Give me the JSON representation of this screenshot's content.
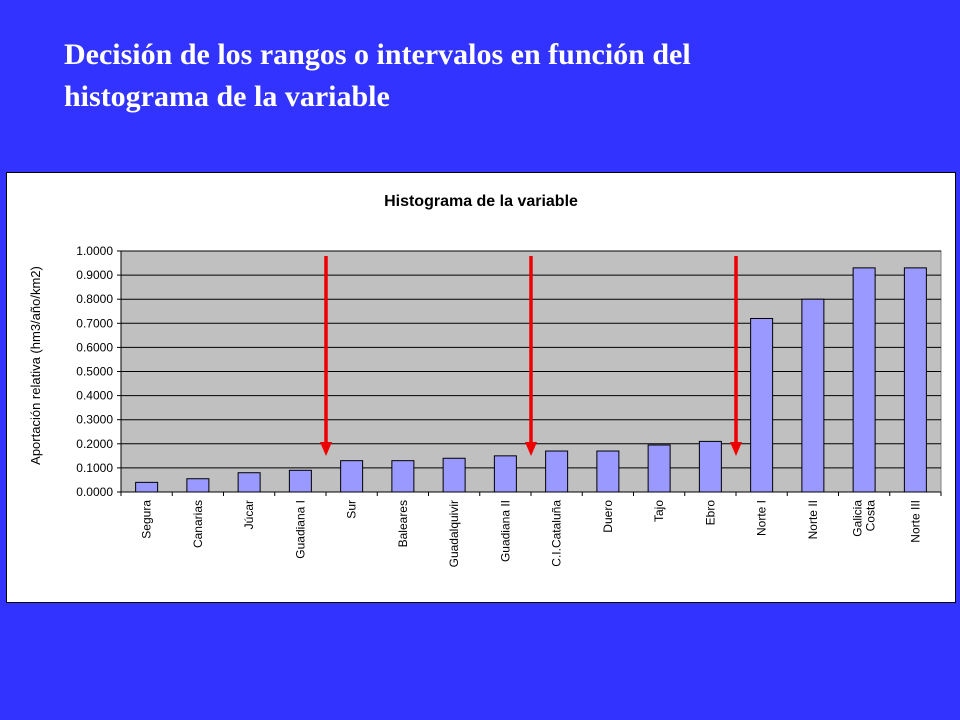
{
  "slide": {
    "title_line1": "Decisión de los rangos o intervalos en función del",
    "title_line2": "histograma de la variable"
  },
  "colors": {
    "background": "#3333FF",
    "bar_fill": "#9999FF",
    "bar_stroke": "#000000",
    "plot_area": "#C0C0C0",
    "arrow": "#EE0000"
  },
  "chart_data": {
    "type": "bar",
    "title": "Histograma de la variable",
    "xlabel": "",
    "ylabel": "Aportación relativa (hm3/año/km2)",
    "ylim": [
      0,
      1
    ],
    "yticks": [
      "0.0000",
      "0.1000",
      "0.2000",
      "0.3000",
      "0.4000",
      "0.5000",
      "0.6000",
      "0.7000",
      "0.8000",
      "0.9000",
      "1.0000"
    ],
    "grid": true,
    "legend": "none",
    "categories": [
      [
        "Segura"
      ],
      [
        "Canarias"
      ],
      [
        "Júcar"
      ],
      [
        "Guadiana I"
      ],
      [
        "Sur"
      ],
      [
        "Baleares"
      ],
      [
        "Guadalquivir"
      ],
      [
        "Guadiana II"
      ],
      [
        "C.I.Cataluña"
      ],
      [
        "Duero"
      ],
      [
        "Tajo"
      ],
      [
        "Ebro"
      ],
      [
        "Norte I"
      ],
      [
        "Norte II"
      ],
      [
        "Galicia",
        "Costa"
      ],
      [
        "Norte III"
      ]
    ],
    "values": [
      0.04,
      0.055,
      0.08,
      0.09,
      0.13,
      0.13,
      0.14,
      0.15,
      0.17,
      0.17,
      0.195,
      0.21,
      0.72,
      0.8,
      0.93,
      0.93
    ],
    "annotations": {
      "break_arrows_after_category_index": [
        3,
        7,
        11
      ]
    }
  }
}
